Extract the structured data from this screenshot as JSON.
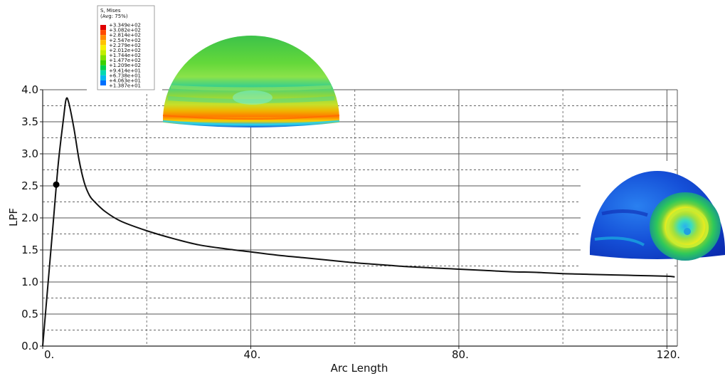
{
  "chart_data": {
    "type": "line",
    "xlabel": "Arc Length",
    "ylabel": "LPF",
    "xlim": [
      0,
      122
    ],
    "ylim": [
      0,
      4.0
    ],
    "x_ticks": [
      {
        "value": 0,
        "label": "0."
      },
      {
        "value": 40,
        "label": "40."
      },
      {
        "value": 80,
        "label": "80."
      },
      {
        "value": 120,
        "label": "120."
      }
    ],
    "y_ticks": [
      {
        "value": 0.0,
        "label": "0.0"
      },
      {
        "value": 0.5,
        "label": "0.5"
      },
      {
        "value": 1.0,
        "label": "1.0"
      },
      {
        "value": 1.5,
        "label": "1.5"
      },
      {
        "value": 2.0,
        "label": "2.0"
      },
      {
        "value": 2.5,
        "label": "2.5"
      },
      {
        "value": 3.0,
        "label": "3.0"
      },
      {
        "value": 3.5,
        "label": "3.5"
      },
      {
        "value": 4.0,
        "label": "4.0"
      }
    ],
    "grid": true,
    "series": [
      {
        "color": "#111111",
        "points": [
          [
            0,
            0
          ],
          [
            1,
            0.95
          ],
          [
            2,
            1.9
          ],
          [
            3,
            2.85
          ],
          [
            4,
            3.55
          ],
          [
            4.5,
            3.85
          ],
          [
            5,
            3.8
          ],
          [
            6,
            3.4
          ],
          [
            7,
            2.9
          ],
          [
            8,
            2.55
          ],
          [
            9,
            2.35
          ],
          [
            10,
            2.25
          ],
          [
            12,
            2.1
          ],
          [
            15,
            1.95
          ],
          [
            20,
            1.8
          ],
          [
            25,
            1.68
          ],
          [
            30,
            1.58
          ],
          [
            35,
            1.52
          ],
          [
            40,
            1.47
          ],
          [
            45,
            1.42
          ],
          [
            50,
            1.38
          ],
          [
            55,
            1.34
          ],
          [
            60,
            1.3
          ],
          [
            65,
            1.27
          ],
          [
            70,
            1.24
          ],
          [
            75,
            1.22
          ],
          [
            80,
            1.2
          ],
          [
            85,
            1.18
          ],
          [
            90,
            1.16
          ],
          [
            95,
            1.15
          ],
          [
            100,
            1.13
          ],
          [
            105,
            1.12
          ],
          [
            110,
            1.11
          ],
          [
            115,
            1.1
          ],
          [
            120,
            1.09
          ],
          [
            121.5,
            1.08
          ]
        ]
      }
    ],
    "marker": {
      "x": 2.6,
      "y": 2.52,
      "color": "#000000"
    },
    "legend": {
      "title_lines": [
        "S, Mises",
        "(Avg: 75%)"
      ],
      "entries": [
        {
          "label": "+3.349e+02",
          "color": "#e00000"
        },
        {
          "label": "+3.082e+02",
          "color": "#ff4a00"
        },
        {
          "label": "+2.814e+02",
          "color": "#ff8c00"
        },
        {
          "label": "+2.547e+02",
          "color": "#ffc200"
        },
        {
          "label": "+2.279e+02",
          "color": "#f5f000"
        },
        {
          "label": "+2.012e+02",
          "color": "#c2ee00"
        },
        {
          "label": "+1.744e+02",
          "color": "#7ee000"
        },
        {
          "label": "+1.477e+02",
          "color": "#3ad000"
        },
        {
          "label": "+1.209e+02",
          "color": "#00d050"
        },
        {
          "label": "+9.414e+01",
          "color": "#00d8b0"
        },
        {
          "label": "+6.738e+01",
          "color": "#00b8f0"
        },
        {
          "label": "+4.063e+01",
          "color": "#0070ff"
        },
        {
          "label": "+1.387e+01",
          "color": "#0020e0"
        }
      ]
    }
  }
}
